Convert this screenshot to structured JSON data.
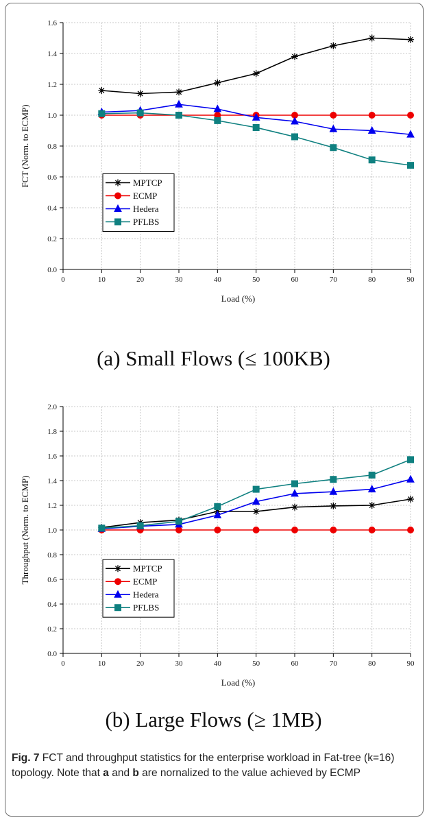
{
  "colors": {
    "MPTCP": "#000000",
    "ECMP": "#ee0000",
    "Hedera": "#0000ee",
    "PFLBS": "#0f8080"
  },
  "chart_data": [
    {
      "type": "line",
      "panel": "a",
      "title": "",
      "xlabel": "Load (%)",
      "ylabel": "FCT (Norm. to ECMP)",
      "xlim": [
        0,
        90
      ],
      "ylim": [
        0.0,
        1.6
      ],
      "xticks": [
        0,
        10,
        20,
        30,
        40,
        50,
        60,
        70,
        80,
        90
      ],
      "yticks": [
        0.0,
        0.2,
        0.4,
        0.6,
        0.8,
        1.0,
        1.2,
        1.4,
        1.6
      ],
      "grid": true,
      "legend_position": "lower-left",
      "x": [
        10,
        20,
        30,
        40,
        50,
        60,
        70,
        80,
        90
      ],
      "series": [
        {
          "name": "MPTCP",
          "marker": "asterisk",
          "values": [
            1.16,
            1.14,
            1.15,
            1.21,
            1.27,
            1.38,
            1.45,
            1.5,
            1.49
          ]
        },
        {
          "name": "ECMP",
          "marker": "circle",
          "values": [
            1.0,
            1.0,
            1.0,
            1.0,
            1.0,
            1.0,
            1.0,
            1.0,
            1.0
          ]
        },
        {
          "name": "Hedera",
          "marker": "triangle",
          "values": [
            1.02,
            1.03,
            1.07,
            1.04,
            0.985,
            0.96,
            0.91,
            0.9,
            0.875
          ]
        },
        {
          "name": "PFLBS",
          "marker": "square",
          "values": [
            1.01,
            1.015,
            1.0,
            0.965,
            0.92,
            0.86,
            0.79,
            0.71,
            0.675
          ]
        }
      ]
    },
    {
      "type": "line",
      "panel": "b",
      "title": "",
      "xlabel": "Load (%)",
      "ylabel": "Throughput (Norm. to ECMP)",
      "xlim": [
        0,
        90
      ],
      "ylim": [
        0.0,
        2.0
      ],
      "xticks": [
        0,
        10,
        20,
        30,
        40,
        50,
        60,
        70,
        80,
        90
      ],
      "yticks": [
        0.0,
        0.2,
        0.4,
        0.6,
        0.8,
        1.0,
        1.2,
        1.4,
        1.6,
        1.8,
        2.0
      ],
      "grid": true,
      "legend_position": "lower-left",
      "x": [
        10,
        20,
        30,
        40,
        50,
        60,
        70,
        80,
        90
      ],
      "series": [
        {
          "name": "MPTCP",
          "marker": "asterisk",
          "values": [
            1.02,
            1.06,
            1.08,
            1.15,
            1.15,
            1.185,
            1.195,
            1.2,
            1.25
          ]
        },
        {
          "name": "ECMP",
          "marker": "circle",
          "values": [
            1.0,
            1.0,
            1.0,
            1.0,
            1.0,
            1.0,
            1.0,
            1.0,
            1.0
          ]
        },
        {
          "name": "Hedera",
          "marker": "triangle",
          "values": [
            1.01,
            1.03,
            1.045,
            1.12,
            1.23,
            1.295,
            1.31,
            1.33,
            1.41
          ]
        },
        {
          "name": "PFLBS",
          "marker": "square",
          "values": [
            1.015,
            1.035,
            1.07,
            1.19,
            1.33,
            1.375,
            1.41,
            1.445,
            1.57
          ]
        }
      ]
    }
  ],
  "subcaptions": {
    "a": "(a)  Small Flows (≤  100KB)",
    "b": "(b)  Large Flows (≥  1MB)"
  },
  "caption": {
    "label": "Fig. 7",
    "text_1": " FCT and throughput statistics for the enterprise workload in Fat-tree (k=16) topology. Note that ",
    "ref_a": "a",
    "text_2": " and ",
    "ref_b": "b",
    "text_3": " are nornalized to the value achieved by ECMP"
  }
}
